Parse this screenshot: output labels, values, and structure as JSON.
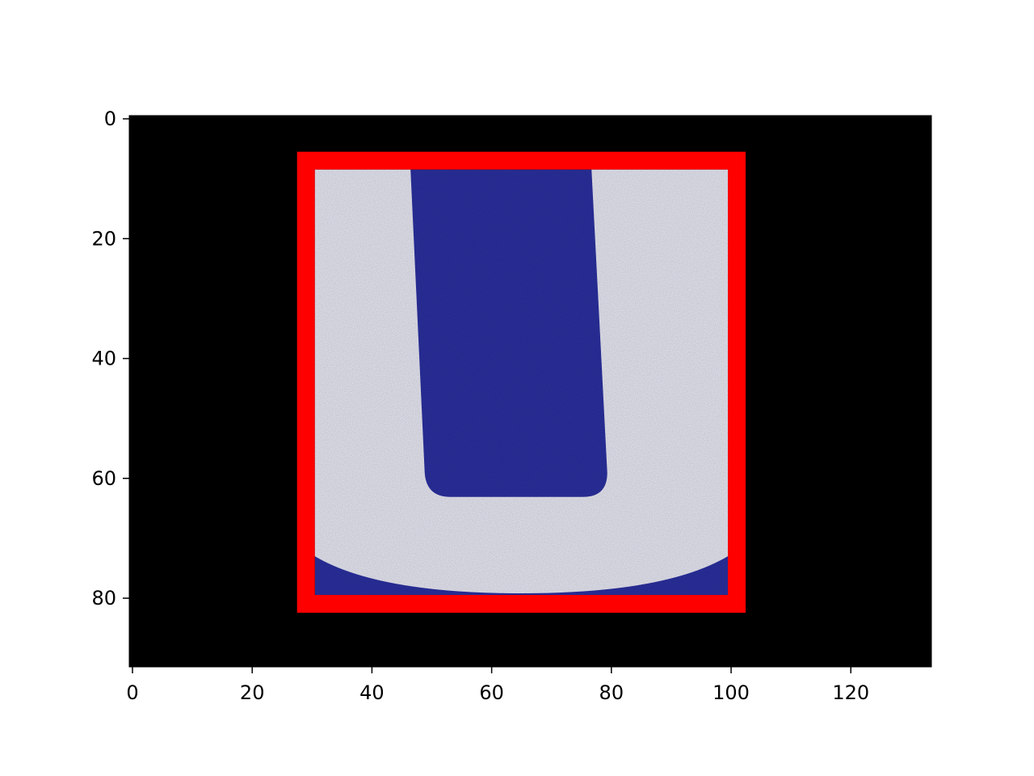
{
  "image": {
    "width": 134,
    "height": 92,
    "background_color": "#000000",
    "subject": "glyph-U",
    "glyph_color": "#e6e6f2",
    "field_color": "#2a2f9e"
  },
  "bounding_box": {
    "x0": 31,
    "y0": 9,
    "x1": 100,
    "y1": 80,
    "color": "#ff0000"
  },
  "axes": {
    "x_ticks": [
      "0",
      "20",
      "40",
      "60",
      "80",
      "100",
      "120"
    ],
    "y_ticks": [
      "0",
      "20",
      "40",
      "60",
      "80"
    ]
  }
}
